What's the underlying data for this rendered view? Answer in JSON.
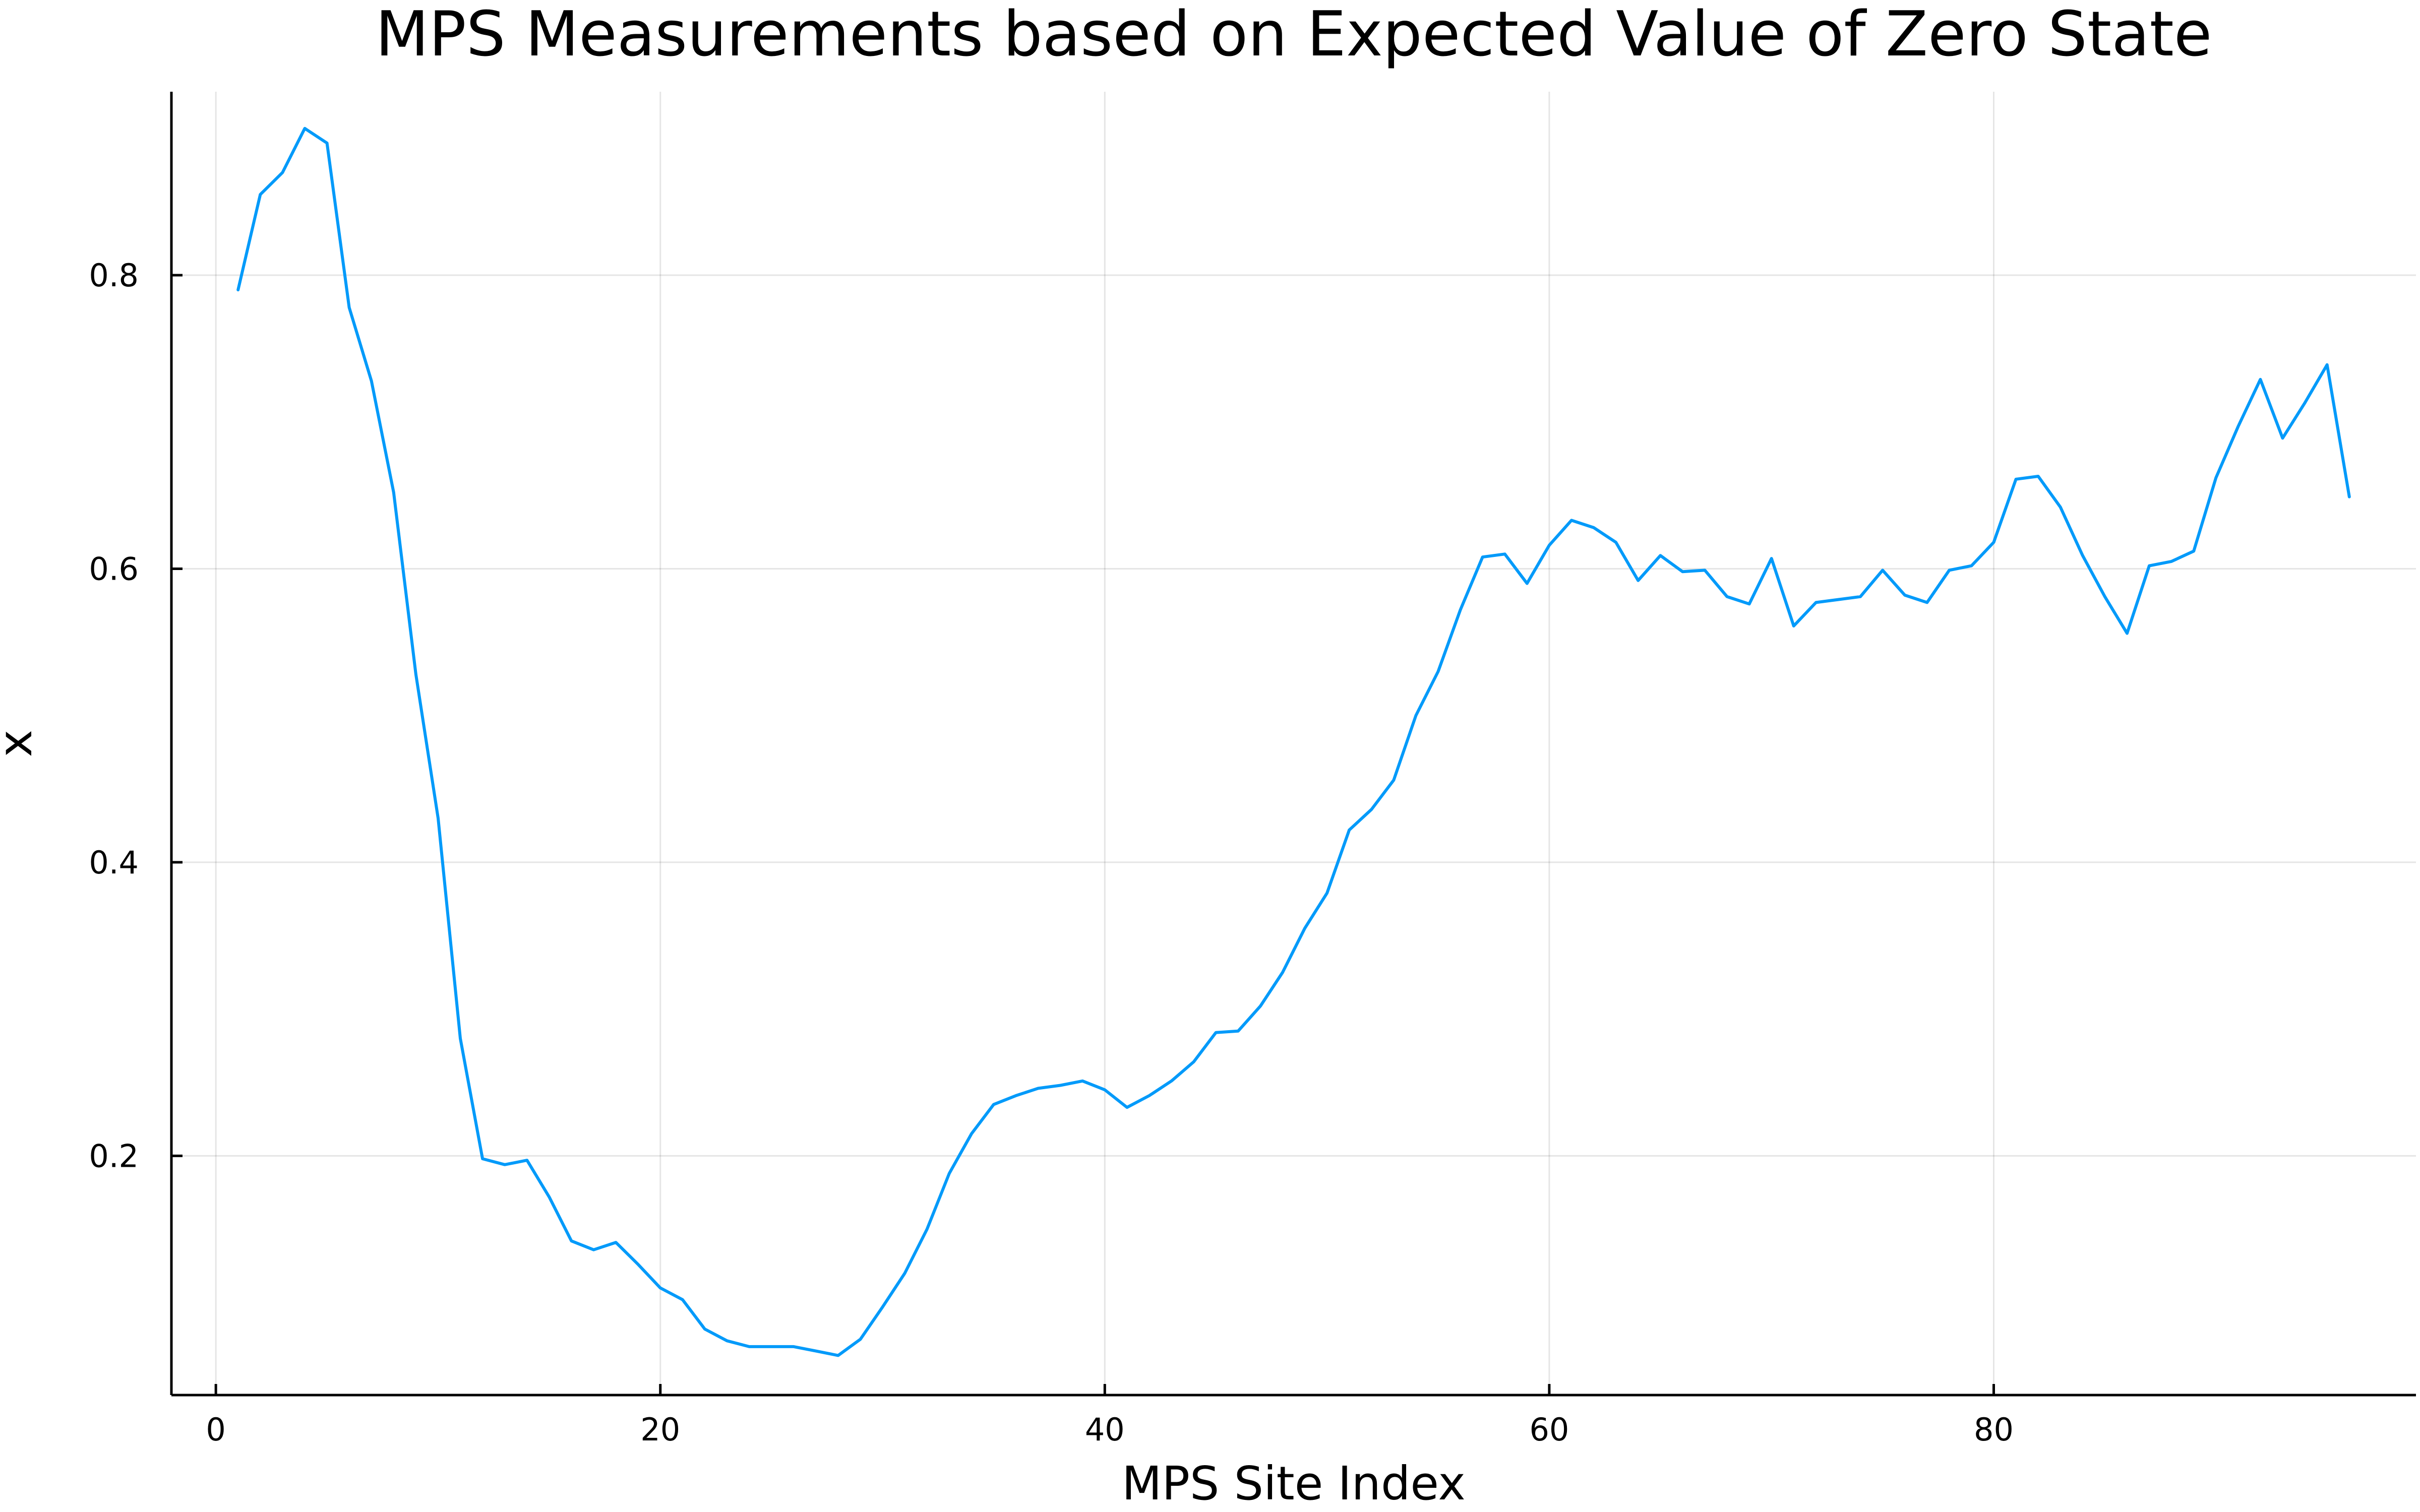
{
  "chart_data": {
    "type": "line",
    "title": "MPS Measurements based on Expected Value of Zero State",
    "xlabel": "MPS Site Index",
    "ylabel": "x",
    "xlim": [
      -2,
      99
    ],
    "ylim": [
      0.037,
      0.925
    ],
    "xticks": [
      0,
      20,
      40,
      60,
      80
    ],
    "yticks": [
      0.2,
      0.4,
      0.6,
      0.8
    ],
    "xtick_labels": [
      "0",
      "20",
      "40",
      "60",
      "80"
    ],
    "ytick_labels": [
      "0.2",
      "0.4",
      "0.6",
      "0.8"
    ],
    "grid": true,
    "legend": "none",
    "colors": {
      "series": "#009AFA",
      "axis": "#000000",
      "background": "#FFFFFF"
    },
    "series": [
      {
        "x": [
          1,
          2,
          3,
          4,
          5,
          6,
          7,
          8,
          9,
          10,
          11,
          12,
          13,
          14,
          15,
          16,
          17,
          18,
          19,
          20,
          21,
          22,
          23,
          24,
          25,
          26,
          27,
          28,
          29,
          30,
          31,
          32,
          33,
          34,
          35,
          36,
          37,
          38,
          39,
          40,
          41,
          42,
          43,
          44,
          45,
          46,
          47,
          48,
          49,
          50,
          51,
          52,
          53,
          54,
          55,
          56,
          57,
          58,
          59,
          60,
          61,
          62,
          63,
          64,
          65,
          66,
          67,
          68,
          69,
          70,
          71,
          72,
          73,
          74,
          75,
          76,
          77,
          78,
          79,
          80,
          81,
          82,
          83,
          84,
          85,
          86,
          87,
          88,
          89,
          90,
          91,
          92,
          93,
          94,
          95,
          96
        ],
        "values": [
          0.79,
          0.855,
          0.87,
          0.9,
          0.89,
          0.778,
          0.728,
          0.652,
          0.528,
          0.43,
          0.28,
          0.198,
          0.194,
          0.197,
          0.172,
          0.142,
          0.136,
          0.141,
          0.126,
          0.11,
          0.102,
          0.082,
          0.074,
          0.07,
          0.07,
          0.07,
          0.067,
          0.064,
          0.075,
          0.097,
          0.12,
          0.15,
          0.188,
          0.215,
          0.235,
          0.241,
          0.246,
          0.248,
          0.251,
          0.245,
          0.233,
          0.241,
          0.251,
          0.264,
          0.284,
          0.285,
          0.302,
          0.325,
          0.355,
          0.379,
          0.422,
          0.436,
          0.456,
          0.5,
          0.53,
          0.572,
          0.608,
          0.61,
          0.59,
          0.616,
          0.633,
          0.628,
          0.618,
          0.592,
          0.609,
          0.598,
          0.599,
          0.581,
          0.576,
          0.607,
          0.561,
          0.577,
          0.579,
          0.581,
          0.599,
          0.582,
          0.577,
          0.599,
          0.602,
          0.618,
          0.661,
          0.663,
          0.642,
          0.609,
          0.581,
          0.556,
          0.602,
          0.605,
          0.612,
          0.662,
          0.697,
          0.729,
          0.689,
          0.713,
          0.739,
          0.649
        ]
      }
    ]
  }
}
